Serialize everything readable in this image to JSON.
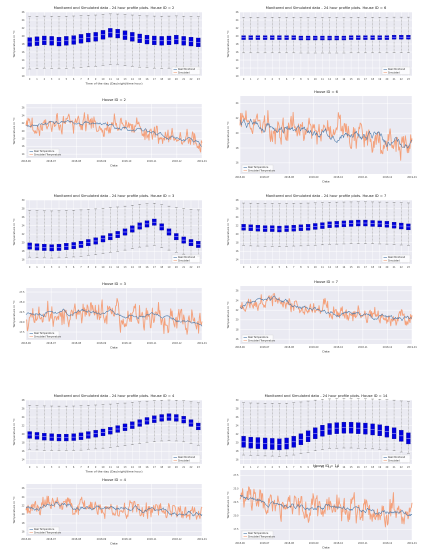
{
  "colors": {
    "bg": "#eaeaf2",
    "grid": "#ffffff",
    "box_fill": "#0000dd",
    "whisker": "#444444",
    "real": "#4a78a8",
    "sim": "#f4a07a",
    "sim_edge": "#e8784a"
  },
  "legend_box": [
    "Real Monitored",
    "Simulated"
  ],
  "legend_ts": [
    "Real Temperature",
    "Simulated Temperature"
  ],
  "chart_data": [
    {
      "id": "box2",
      "type": "box",
      "title": "Monitored and Simulated data - 24 hour profile plots. House ID = 2",
      "xlabel": "Time of the day (Day/night/time hour)",
      "ylabel": "Temperature in °C",
      "categories": [
        "0",
        "1",
        "2",
        "3",
        "4",
        "5",
        "6",
        "7",
        "8",
        "9",
        "10",
        "11",
        "12",
        "13",
        "14",
        "15",
        "16",
        "17",
        "18",
        "19",
        "20",
        "21",
        "22",
        "23"
      ],
      "yticks": [
        "10",
        "12",
        "14",
        "16",
        "18",
        "20",
        "22",
        "24",
        "26"
      ],
      "ylim": [
        10,
        26
      ],
      "medians": [
        18.5,
        18.7,
        18.9,
        18.8,
        18.6,
        18.8,
        19.0,
        19.3,
        19.6,
        19.8,
        20.3,
        20.8,
        20.6,
        20.2,
        19.8,
        19.4,
        19.1,
        18.9,
        18.8,
        18.9,
        19.1,
        18.8,
        18.6,
        18.4
      ],
      "iqr": 2.2,
      "whisk_lo": 12.0,
      "whisk_hi": 25.0
    },
    {
      "id": "box6",
      "type": "box",
      "title": "Monitored and Simulated data - 24 hour profile plots. House ID = 6",
      "xlabel": "",
      "ylabel": "Temperature in °C",
      "categories": [
        "0",
        "1",
        "2",
        "3",
        "4",
        "5",
        "6",
        "7",
        "8",
        "9",
        "10",
        "11",
        "12",
        "13",
        "14",
        "15",
        "16",
        "17",
        "18",
        "19",
        "20",
        "21",
        "22",
        "23"
      ],
      "yticks": [
        "10",
        "12",
        "14",
        "16",
        "18",
        "20",
        "22",
        "24",
        "26"
      ],
      "ylim": [
        10,
        26
      ],
      "medians": [
        19.6,
        19.6,
        19.6,
        19.6,
        19.6,
        19.6,
        19.6,
        19.6,
        19.5,
        19.5,
        19.5,
        19.5,
        19.5,
        19.5,
        19.5,
        19.6,
        19.6,
        19.6,
        19.6,
        19.6,
        19.6,
        19.7,
        19.7,
        19.7
      ],
      "iqr": 1.0,
      "whisk_lo": 15.5,
      "whisk_hi": 24.5
    },
    {
      "id": "ts2",
      "type": "line",
      "title": "House ID = 2",
      "xlabel": "Date",
      "ylabel": "Temperature in °C",
      "xticks": [
        "2018-06",
        "2018-07",
        "2018-08",
        "2018-09",
        "2018-10",
        "2018-11",
        "2018-12",
        "2019-01"
      ],
      "yticks": [
        "14",
        "16",
        "18",
        "20",
        "22",
        "24",
        "26"
      ],
      "ylim": [
        13,
        27
      ],
      "series": [
        {
          "name": "Real Temperature"
        },
        {
          "name": "Simulated Temperature"
        }
      ],
      "trend": [
        [
          0,
          21.5
        ],
        [
          0.35,
          22.2
        ],
        [
          0.55,
          21.0
        ],
        [
          0.75,
          19.5
        ],
        [
          0.9,
          18.0
        ],
        [
          1,
          16.5
        ]
      ],
      "noise_real": 1.0,
      "noise_sim": 2.0,
      "seed": 3
    },
    {
      "id": "ts6",
      "type": "line",
      "title": "House ID = 6",
      "xlabel": "Date",
      "ylabel": "Temperature in °C",
      "xticks": [
        "2018-06",
        "2018-07",
        "2018-08",
        "2018-09",
        "2018-10",
        "2018-11",
        "2018-12",
        "2019-01"
      ],
      "yticks": [
        "16",
        "18",
        "20",
        "22",
        "24"
      ],
      "ylim": [
        14.5,
        25
      ],
      "series": [
        {
          "name": "Real Temperature"
        },
        {
          "name": "Simulated Temperature"
        }
      ],
      "trend": [
        [
          0,
          21.5
        ],
        [
          0.2,
          20.5
        ],
        [
          0.5,
          20.2
        ],
        [
          0.75,
          19.5
        ],
        [
          1,
          18.5
        ]
      ],
      "noise_real": 1.1,
      "noise_sim": 1.5,
      "seed": 7
    },
    {
      "id": "box3",
      "type": "box",
      "title": "Monitored and Simulated data - 24 hour profile plots. House ID = 3",
      "xlabel": "",
      "ylabel": "Temperature in °C",
      "categories": [
        "0",
        "1",
        "2",
        "3",
        "4",
        "5",
        "6",
        "7",
        "8",
        "9",
        "10",
        "11",
        "12",
        "13",
        "14",
        "15",
        "16",
        "17",
        "18",
        "19",
        "20",
        "21",
        "22",
        "23"
      ],
      "yticks": [
        "16",
        "18",
        "20",
        "22",
        "24",
        "26",
        "28",
        "30"
      ],
      "ylim": [
        15,
        30
      ],
      "medians": [
        19.2,
        19.0,
        18.9,
        18.8,
        18.9,
        19.1,
        19.3,
        19.6,
        20.0,
        20.4,
        20.9,
        21.4,
        21.9,
        22.5,
        23.2,
        23.9,
        24.4,
        24.8,
        23.7,
        22.5,
        21.4,
        20.6,
        20.0,
        19.6
      ],
      "iqr": 1.5,
      "whisk_lo": 16.5,
      "whisk_hi": 27.5
    },
    {
      "id": "box7",
      "type": "box",
      "title": "Monitored and Simulated data - 24 hour profile plots. House ID = 7",
      "xlabel": "",
      "ylabel": "Temperature in °C",
      "categories": [
        "0",
        "1",
        "2",
        "3",
        "4",
        "5",
        "6",
        "7",
        "8",
        "9",
        "10",
        "11",
        "12",
        "13",
        "14",
        "15",
        "16",
        "17",
        "18",
        "19",
        "20",
        "21",
        "22",
        "23"
      ],
      "yticks": [
        "14",
        "16",
        "18",
        "20",
        "22",
        "24",
        "26",
        "28"
      ],
      "ylim": [
        13,
        28
      ],
      "medians": [
        21.6,
        21.5,
        21.4,
        21.3,
        21.3,
        21.2,
        21.3,
        21.4,
        21.5,
        21.6,
        21.8,
        22.0,
        22.2,
        22.3,
        22.4,
        22.5,
        22.6,
        22.6,
        22.5,
        22.4,
        22.3,
        22.1,
        21.9,
        21.7
      ],
      "iqr": 1.4,
      "whisk_lo": 16.0,
      "whisk_hi": 26.5
    },
    {
      "id": "ts3",
      "type": "line",
      "title": "House ID = 3",
      "xlabel": "Date",
      "ylabel": "Temperature in °C",
      "xticks": [
        "2018-06",
        "2018-07",
        "2018-08",
        "2018-09",
        "2018-10",
        "2018-11",
        "2018-12",
        "2019-01"
      ],
      "yticks": [
        "17.5",
        "20.0",
        "22.5",
        "25.0",
        "27.5"
      ],
      "ylim": [
        15.5,
        28.5
      ],
      "series": [
        {
          "name": "Real Temperature"
        },
        {
          "name": "Simulated Temperature"
        }
      ],
      "trend": [
        [
          0,
          22.0
        ],
        [
          0.3,
          22.5
        ],
        [
          0.5,
          22.0
        ],
        [
          0.8,
          20.5
        ],
        [
          1,
          19.5
        ]
      ],
      "noise_real": 1.0,
      "noise_sim": 2.6,
      "seed": 11
    },
    {
      "id": "ts7",
      "type": "line",
      "title": "House ID = 7",
      "xlabel": "Date",
      "ylabel": "Temperature in °C",
      "xticks": [
        "2018-06",
        "2018-07",
        "2018-08",
        "2018-09",
        "2018-10",
        "2018-11",
        "2018-12",
        "2019-01"
      ],
      "yticks": [
        "16",
        "18",
        "20",
        "22",
        "24",
        "26"
      ],
      "ylim": [
        15,
        27
      ],
      "series": [
        {
          "name": "Real Temperature"
        },
        {
          "name": "Simulated Temperature"
        }
      ],
      "trend": [
        [
          0,
          23.0
        ],
        [
          0.2,
          24.5
        ],
        [
          0.35,
          22.5
        ],
        [
          0.6,
          21.5
        ],
        [
          0.85,
          20.5
        ],
        [
          1,
          20.0
        ]
      ],
      "noise_real": 0.9,
      "noise_sim": 1.3,
      "seed": 19
    },
    {
      "id": "box4",
      "type": "box",
      "title": "Monitored and Simulated data - 24 hour profile plots. House ID = 4",
      "xlabel": "Time of the day (Day/night/time hour)",
      "ylabel": "Temperature in °C",
      "categories": [
        "0",
        "1",
        "2",
        "3",
        "4",
        "5",
        "6",
        "7",
        "8",
        "9",
        "10",
        "11",
        "12",
        "13",
        "14",
        "15",
        "16",
        "17",
        "18",
        "19",
        "20",
        "21",
        "22",
        "23"
      ],
      "yticks": [
        "14",
        "16",
        "18",
        "20",
        "22",
        "24",
        "26",
        "28"
      ],
      "ylim": [
        13,
        28
      ],
      "medians": [
        19.8,
        19.6,
        19.4,
        19.3,
        19.2,
        19.2,
        19.3,
        19.5,
        19.8,
        20.1,
        20.4,
        20.8,
        21.2,
        21.6,
        22.1,
        22.6,
        23.1,
        23.5,
        23.8,
        24.0,
        23.8,
        23.4,
        22.6,
        21.8
      ],
      "iqr": 1.6,
      "whisk_lo": 16.0,
      "whisk_hi": 26.5
    },
    {
      "id": "box14",
      "type": "box",
      "title": "Monitored and Simulated data - 24 hour profile plots. House ID = 14",
      "xlabel": "",
      "ylabel": "Temperature in °C",
      "categories": [
        "0",
        "1",
        "2",
        "3",
        "4",
        "5",
        "6",
        "7",
        "8",
        "9",
        "10",
        "11",
        "12",
        "13",
        "14",
        "15",
        "16",
        "17",
        "18",
        "19",
        "20",
        "21",
        "22",
        "23"
      ],
      "yticks": [
        "16",
        "18",
        "20",
        "22",
        "24",
        "26",
        "28",
        "30"
      ],
      "ylim": [
        15,
        30
      ],
      "medians": [
        20.2,
        20.0,
        19.9,
        19.8,
        19.7,
        19.6,
        19.8,
        20.2,
        20.8,
        21.5,
        22.2,
        22.8,
        23.2,
        23.4,
        23.5,
        23.5,
        23.4,
        23.3,
        23.1,
        22.9,
        22.6,
        22.2,
        21.6,
        21.0
      ],
      "iqr": 2.6,
      "whisk_lo": 16.5,
      "whisk_hi": 29.0
    },
    {
      "id": "ts4",
      "type": "line",
      "title": "House ID = 4",
      "xlabel": "Date",
      "ylabel": "Temperature in °C",
      "xticks": [
        "2018-06",
        "2018-07",
        "2018-08",
        "2018-09",
        "2018-10",
        "2018-11",
        "2018-12",
        "2019-01"
      ],
      "yticks": [
        "16",
        "18",
        "20",
        "22",
        "24",
        "26"
      ],
      "ylim": [
        15,
        27
      ],
      "series": [
        {
          "name": "Real Temperature"
        },
        {
          "name": "Simulated Temperature"
        }
      ],
      "trend": [
        [
          0,
          21.5
        ],
        [
          0.15,
          22.5
        ],
        [
          0.4,
          21.5
        ],
        [
          0.7,
          21.0
        ],
        [
          1,
          20.0
        ]
      ],
      "noise_real": 1.0,
      "noise_sim": 1.6,
      "seed": 23
    },
    {
      "id": "ts14",
      "type": "line",
      "title": "House ID = 14",
      "xlabel": "Date",
      "ylabel": "Temperature in °C",
      "xticks": [
        "2018-06",
        "2018-07",
        "2018-08",
        "2018-09",
        "2018-10",
        "2018-11",
        "2018-12",
        "2019-01"
      ],
      "yticks": [
        "17.5",
        "20.0",
        "22.5",
        "25.0",
        "27.5"
      ],
      "ylim": [
        15.5,
        28.5
      ],
      "series": [
        {
          "name": "Real Temperature"
        },
        {
          "name": "Simulated Temperature"
        }
      ],
      "trend": [
        [
          0,
          23.5
        ],
        [
          0.2,
          22.0
        ],
        [
          0.5,
          21.5
        ],
        [
          0.8,
          21.0
        ],
        [
          1,
          20.5
        ]
      ],
      "noise_real": 0.9,
      "noise_sim": 2.0,
      "seed": 29
    }
  ]
}
